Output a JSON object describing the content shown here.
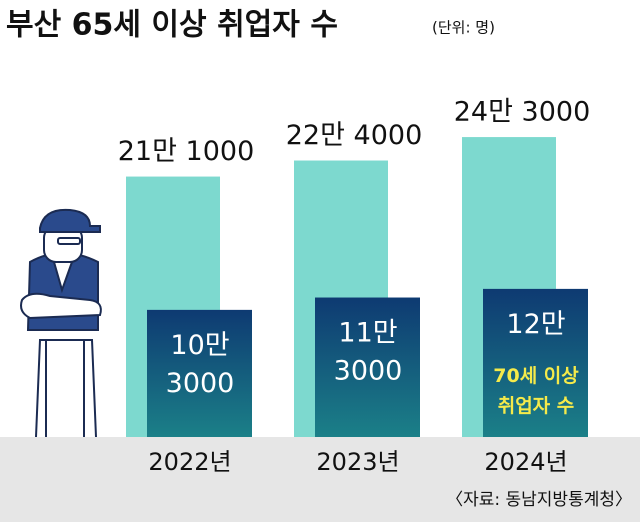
{
  "chart_data": {
    "type": "bar",
    "title": "부산 65세 이상 취업자 수",
    "subtitle": "(단위: 명)",
    "source": "〈자료: 동남지방통계청〉",
    "categories": [
      "2022년",
      "2023년",
      "2024년"
    ],
    "ylim": [
      0,
      350000
    ],
    "series": [
      {
        "color": "#7dd9cf",
        "values": [
          211000,
          224000,
          243000
        ],
        "value_labels": [
          "21만 1000",
          "22만 4000",
          "24만 3000"
        ]
      },
      {
        "name": "70세 이상 취업자 수",
        "color": "#0e3a72",
        "values": [
          103000,
          113000,
          120000
        ],
        "value_labels": [
          "10만 3000",
          "11만 3000",
          "12만"
        ]
      }
    ]
  }
}
